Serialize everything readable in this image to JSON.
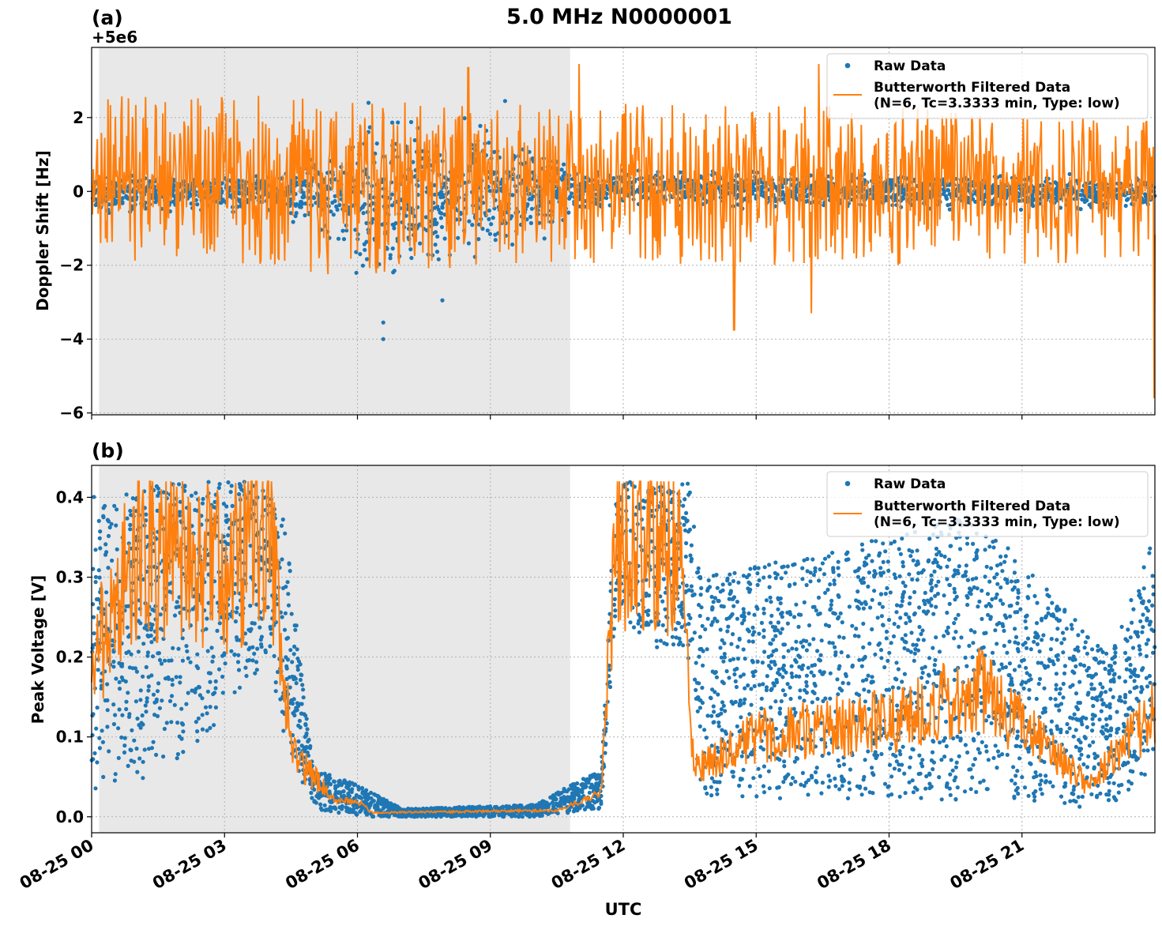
{
  "title": "5.0 MHz N0000001",
  "colors": {
    "raw": "#1f77b4",
    "filtered": "#ff7f0e",
    "shade": "#e8e8e8",
    "grid": "#b0b0b0"
  },
  "xaxis": {
    "label": "UTC",
    "ticks": [
      {
        "h": 0,
        "label": "08-25 00"
      },
      {
        "h": 3,
        "label": "08-25 03"
      },
      {
        "h": 6,
        "label": "08-25 06"
      },
      {
        "h": 9,
        "label": "08-25 09"
      },
      {
        "h": 12,
        "label": "08-25 12"
      },
      {
        "h": 15,
        "label": "08-25 15"
      },
      {
        "h": 18,
        "label": "08-25 18"
      },
      {
        "h": 21,
        "label": "08-25 21"
      }
    ]
  },
  "chart_data": [
    {
      "type": "scatter",
      "panel_label": "(a)",
      "offset_text": "+5e6",
      "ylabel": "Doppler Shift [Hz]",
      "xlim": [
        "08-25 00:00",
        "08-26 00:00"
      ],
      "ylim": [
        -6.05,
        3.9
      ],
      "yticks": [
        {
          "v": 2,
          "label": "2"
        },
        {
          "v": 0,
          "label": "0"
        },
        {
          "v": -2,
          "label": "−2"
        },
        {
          "v": -4,
          "label": "−4"
        },
        {
          "v": -6,
          "label": "−6"
        }
      ],
      "shaded_interval_utc": [
        "08-25 00:10",
        "08-25 10:48"
      ],
      "grid": true,
      "legend_position": "upper right",
      "legend": [
        "Raw Data",
        "Butterworth Filtered Data",
        "(N=6, Tc=3.3333 min, Type: low)"
      ],
      "series": [
        {
          "name": "Raw Data",
          "style": "points",
          "envelope_hz": [
            {
              "t": "08-25 00:00",
              "lo": -0.6,
              "hi": 0.4
            },
            {
              "t": "08-25 04:00",
              "lo": -0.5,
              "hi": 0.5
            },
            {
              "t": "08-25 05:30",
              "lo": -1.5,
              "hi": 1.2
            },
            {
              "t": "08-25 06:30",
              "lo": -2.5,
              "hi": 2.2
            },
            {
              "t": "08-25 08:00",
              "lo": -2.0,
              "hi": 1.8
            },
            {
              "t": "08-25 09:30",
              "lo": -2.0,
              "hi": 1.8
            },
            {
              "t": "08-25 10:45",
              "lo": -0.7,
              "hi": 0.7
            },
            {
              "t": "08-25 12:00",
              "lo": -0.4,
              "hi": 0.6
            },
            {
              "t": "08-26 00:00",
              "lo": -0.5,
              "hi": 0.4
            }
          ],
          "notable_points_hz": [
            {
              "t": "08-25 06:35",
              "v": -4.0
            },
            {
              "t": "08-25 06:35",
              "v": -3.55
            },
            {
              "t": "08-25 07:55",
              "v": -2.95
            },
            {
              "t": "08-25 06:15",
              "v": 2.4
            },
            {
              "t": "08-25 09:20",
              "v": 2.45
            }
          ]
        },
        {
          "name": "Butterworth Filtered Data",
          "style": "line",
          "envelope_hz": [
            {
              "t": "08-25 00:00",
              "lo": -1.8,
              "hi": 2.6
            },
            {
              "t": "08-25 06:00",
              "lo": -2.3,
              "hi": 2.6
            },
            {
              "t": "08-25 09:00",
              "lo": -2.0,
              "hi": 2.4
            },
            {
              "t": "08-25 12:00",
              "lo": -2.0,
              "hi": 2.4
            },
            {
              "t": "08-25 18:00",
              "lo": -2.0,
              "hi": 2.3
            },
            {
              "t": "08-26 00:00",
              "lo": -2.0,
              "hi": 2.0
            }
          ],
          "peaks_hz": [
            {
              "t": "08-25 08:30",
              "v": 3.35
            },
            {
              "t": "08-25 11:00",
              "v": 3.45
            },
            {
              "t": "08-25 16:25",
              "v": 3.45
            },
            {
              "t": "08-25 14:30",
              "v": -3.75
            },
            {
              "t": "08-25 16:15",
              "v": -3.3
            },
            {
              "t": "08-25 23:59",
              "v": -5.6
            }
          ]
        }
      ]
    },
    {
      "type": "scatter",
      "panel_label": "(b)",
      "ylabel": "Peak Voltage [V]",
      "xlim": [
        "08-25 00:00",
        "08-26 00:00"
      ],
      "ylim": [
        -0.02,
        0.44
      ],
      "yticks": [
        {
          "v": 0.4,
          "label": "0.4"
        },
        {
          "v": 0.3,
          "label": "0.3"
        },
        {
          "v": 0.2,
          "label": "0.2"
        },
        {
          "v": 0.1,
          "label": "0.1"
        },
        {
          "v": 0.0,
          "label": "0.0"
        }
      ],
      "shaded_interval_utc": [
        "08-25 00:10",
        "08-25 10:48"
      ],
      "grid": true,
      "legend_position": "upper right",
      "legend": [
        "Raw Data",
        "Butterworth Filtered Data",
        "(N=6, Tc=3.3333 min, Type: low)"
      ],
      "series": [
        {
          "name": "Raw Data",
          "style": "points",
          "envelope_v": [
            {
              "t": "08-25 00:00",
              "lo": 0.03,
              "hi": 0.4
            },
            {
              "t": "08-25 02:00",
              "lo": 0.06,
              "hi": 0.42
            },
            {
              "t": "08-25 04:00",
              "lo": 0.2,
              "hi": 0.42
            },
            {
              "t": "08-25 04:20",
              "lo": 0.1,
              "hi": 0.38
            },
            {
              "t": "08-25 05:00",
              "lo": 0.01,
              "hi": 0.06
            },
            {
              "t": "08-25 06:00",
              "lo": 0.0,
              "hi": 0.04
            },
            {
              "t": "08-25 07:00",
              "lo": 0.0,
              "hi": 0.01
            },
            {
              "t": "08-25 10:00",
              "lo": 0.0,
              "hi": 0.015
            },
            {
              "t": "08-25 11:30",
              "lo": 0.01,
              "hi": 0.06
            },
            {
              "t": "08-25 11:50",
              "lo": 0.25,
              "hi": 0.42
            },
            {
              "t": "08-25 13:30",
              "lo": 0.18,
              "hi": 0.42
            },
            {
              "t": "08-25 13:45",
              "lo": 0.02,
              "hi": 0.3
            },
            {
              "t": "08-25 18:00",
              "lo": 0.02,
              "hi": 0.35
            },
            {
              "t": "08-25 20:00",
              "lo": 0.02,
              "hi": 0.38
            },
            {
              "t": "08-25 23:00",
              "lo": 0.01,
              "hi": 0.2
            },
            {
              "t": "08-26 00:00",
              "lo": 0.05,
              "hi": 0.36
            }
          ]
        },
        {
          "name": "Butterworth Filtered Data",
          "style": "line",
          "trend_v": [
            {
              "t": "08-25 00:00",
              "v": 0.18
            },
            {
              "t": "08-25 00:20",
              "v": 0.24
            },
            {
              "t": "08-25 01:00",
              "v": 0.33
            },
            {
              "t": "08-25 02:00",
              "v": 0.34
            },
            {
              "t": "08-25 03:00",
              "v": 0.3
            },
            {
              "t": "08-25 04:00",
              "v": 0.36
            },
            {
              "t": "08-25 04:10",
              "v": 0.3
            },
            {
              "t": "08-25 04:30",
              "v": 0.08
            },
            {
              "t": "08-25 05:30",
              "v": 0.02
            },
            {
              "t": "08-25 06:00",
              "v": 0.02
            },
            {
              "t": "08-25 06:20",
              "v": 0.005
            },
            {
              "t": "08-25 10:30",
              "v": 0.008
            },
            {
              "t": "08-25 11:30",
              "v": 0.03
            },
            {
              "t": "08-25 11:50",
              "v": 0.36
            },
            {
              "t": "08-25 12:30",
              "v": 0.35
            },
            {
              "t": "08-25 13:20",
              "v": 0.33
            },
            {
              "t": "08-25 13:35",
              "v": 0.06
            },
            {
              "t": "08-25 15:00",
              "v": 0.1
            },
            {
              "t": "08-25 18:00",
              "v": 0.12
            },
            {
              "t": "08-25 20:00",
              "v": 0.16
            },
            {
              "t": "08-25 22:30",
              "v": 0.04
            },
            {
              "t": "08-26 00:00",
              "v": 0.13
            }
          ]
        }
      ]
    }
  ]
}
